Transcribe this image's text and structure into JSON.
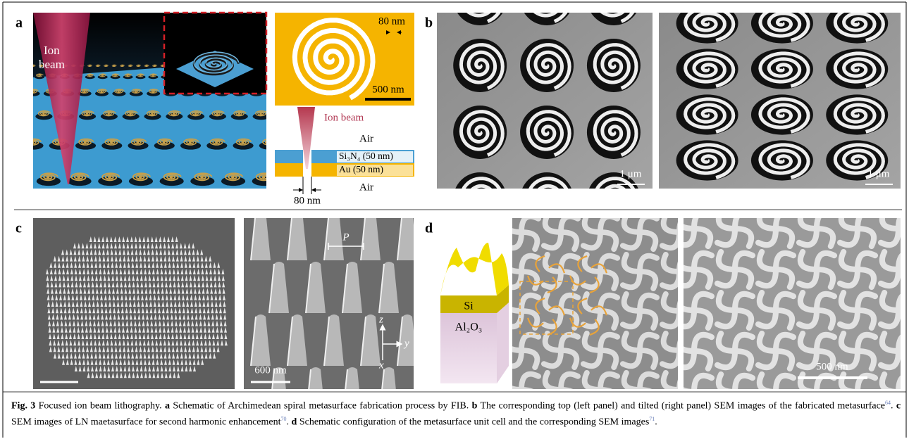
{
  "panels": {
    "a": {
      "label": "a",
      "ion_beam_label_lines": [
        "Ion",
        "beam"
      ],
      "gap_width": "80 nm",
      "scale_bar": "500 nm",
      "cross_section": {
        "ion_beam": "Ion beam",
        "top_medium": "Air",
        "layer_top": "Si₃N₄ (50 nm)",
        "layer_bottom": "Au (50 nm)",
        "bottom_medium": "Air",
        "gap_width": "80 nm"
      }
    },
    "b": {
      "label": "b",
      "left_scale_bar": "1 μm",
      "right_scale_bar": "1 μm"
    },
    "c": {
      "label": "c",
      "period_label": "P",
      "axes": {
        "z": "z",
        "y": "y",
        "x": "x"
      },
      "scale_bar": "600 nm"
    },
    "d": {
      "label": "d",
      "top_layer": "Si",
      "bottom_layer": "Al₂O₃",
      "scale_bar": "500 nm"
    }
  },
  "caption": {
    "figure_label": "Fig. 3",
    "title": "Focused ion beam lithography.",
    "parts": [
      {
        "label": "a",
        "text": "Schematic of Archimedean spiral metasurface fabrication process by FIB."
      },
      {
        "label": "b",
        "text": "The corresponding top (left panel) and tilted (right panel) SEM images of the fabricated metasurface",
        "ref": "64"
      },
      {
        "label": "c",
        "text": "SEM images of LN maetasurface for second harmonic enhancement",
        "ref": "70"
      },
      {
        "label": "d",
        "text": "Schematic configuration of the metasurface unit cell and the corresponding SEM images",
        "ref": "71"
      }
    ]
  }
}
